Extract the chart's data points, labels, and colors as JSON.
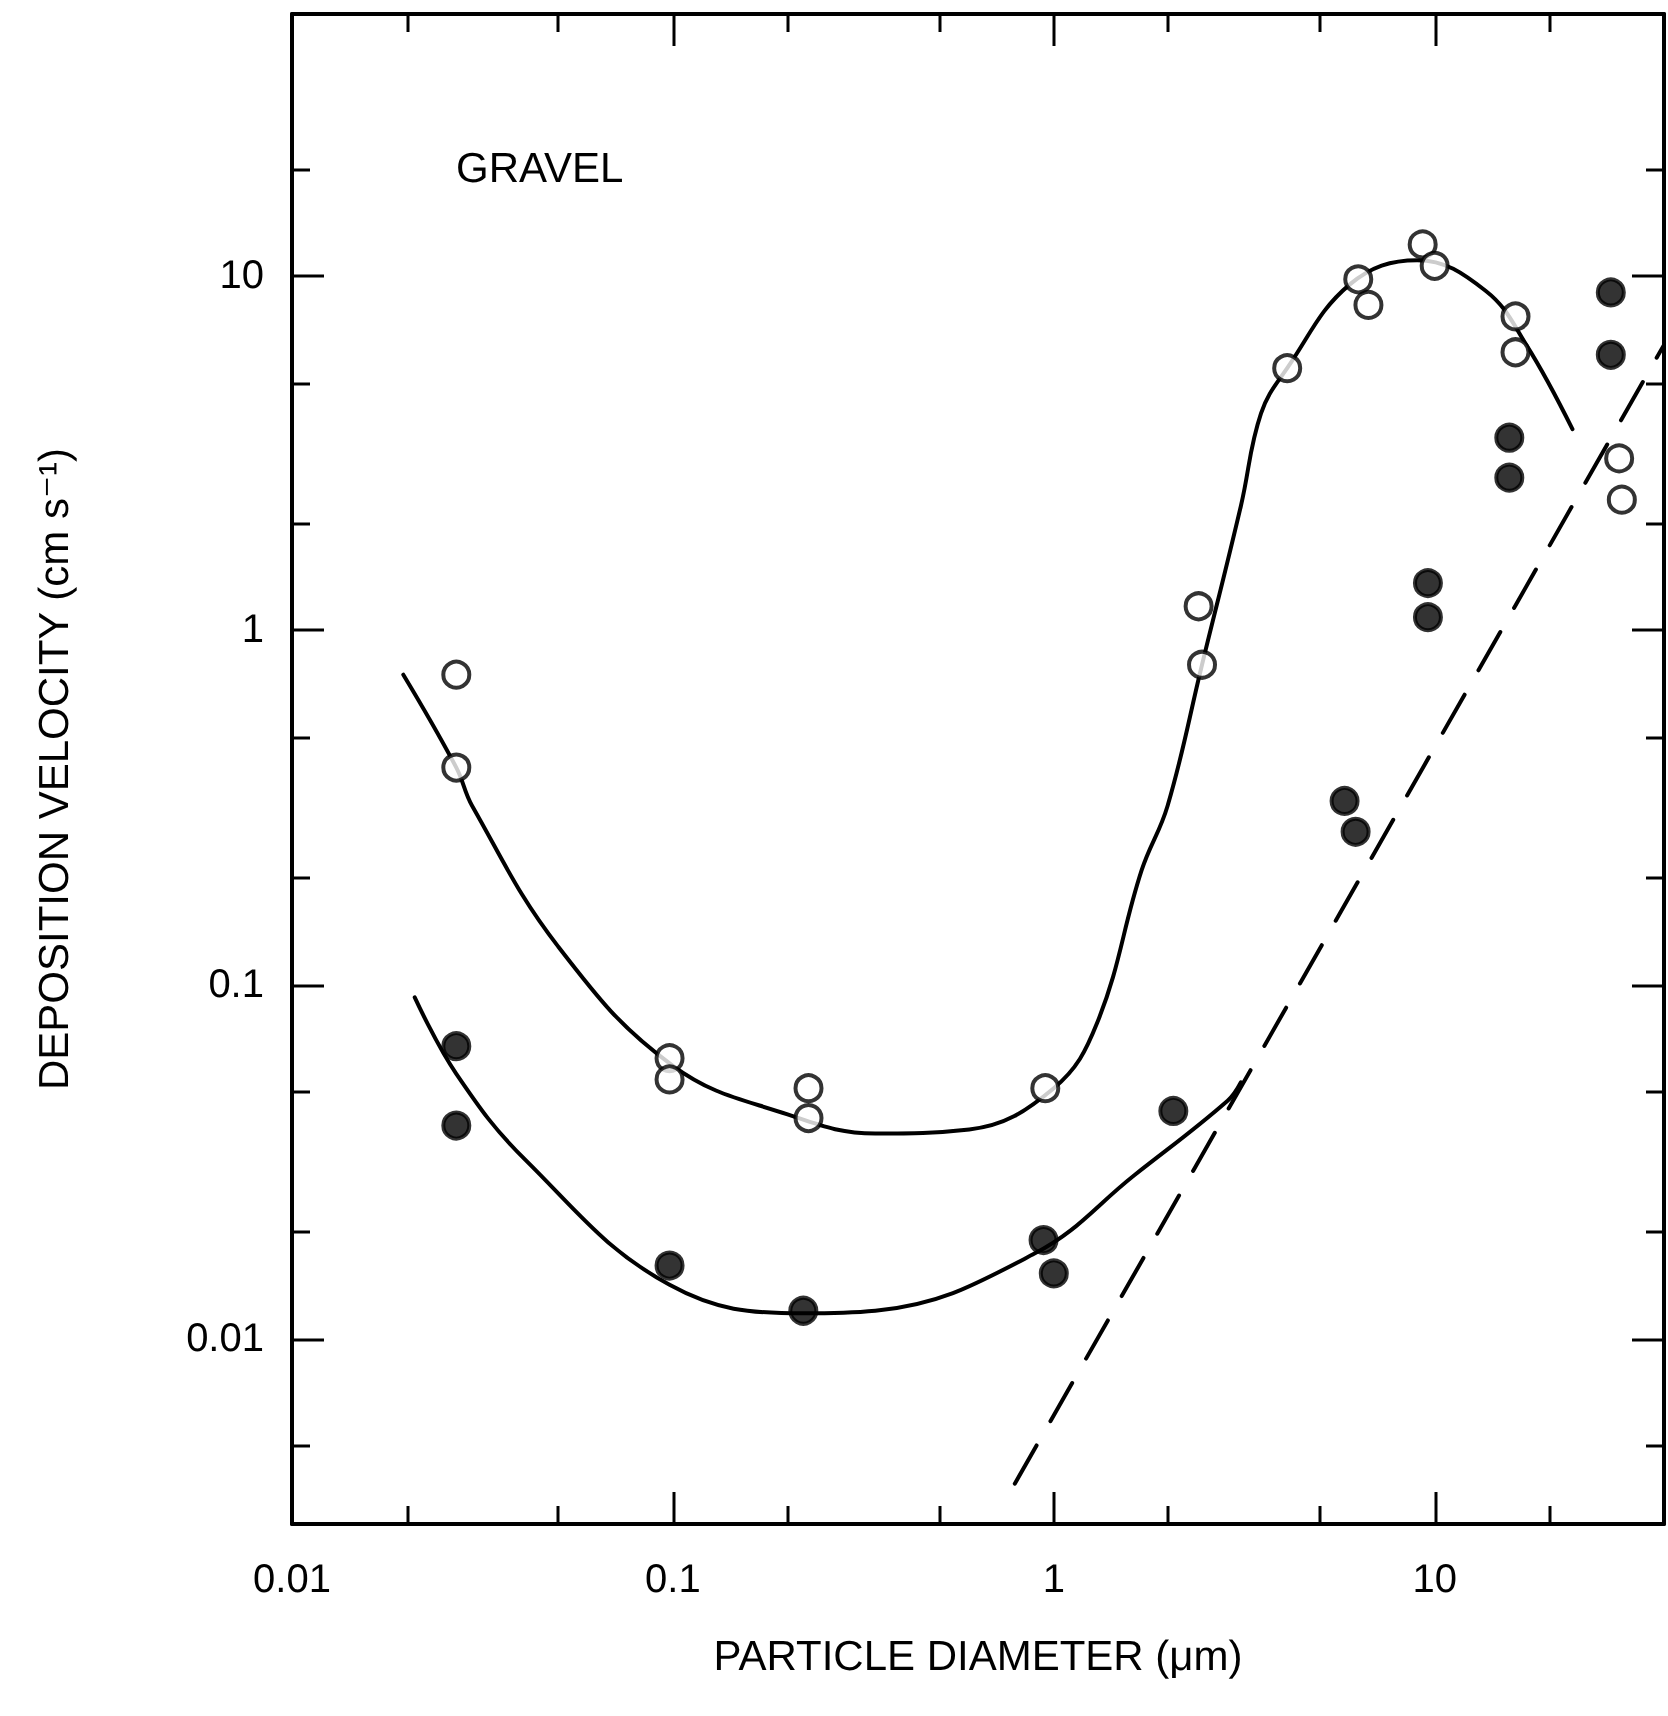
{
  "chart_data": {
    "type": "scatter",
    "xlabel": "PARTICLE DIAMETER (μm)",
    "ylabel": "DEPOSITION VELOCITY (cm s⁻¹)",
    "annotations": [
      "GRAVEL"
    ],
    "log": "xy",
    "grid": false,
    "marker": "circle",
    "xlim": [
      0.01,
      40
    ],
    "ylim": [
      0.003,
      55
    ],
    "xticks": [
      0.01,
      {
        "value": 0.02,
        "label": null
      },
      {
        "value": 0.05,
        "label": null
      },
      0.1,
      {
        "value": 0.2,
        "label": null
      },
      {
        "value": 0.5,
        "label": null
      },
      1,
      {
        "value": 2,
        "label": null
      },
      {
        "value": 5,
        "label": null
      },
      10,
      {
        "value": 20,
        "label": null
      }
    ],
    "yticks": [
      {
        "value": 0.005,
        "label": null
      },
      0.01,
      {
        "value": 0.02,
        "label": null
      },
      {
        "value": 0.05,
        "label": null
      },
      0.1,
      {
        "value": 0.2,
        "label": null
      },
      {
        "value": 0.5,
        "label": null
      },
      1,
      {
        "value": 2,
        "label": null
      },
      {
        "value": 5,
        "label": null
      },
      10,
      {
        "value": 20,
        "label": null
      }
    ],
    "series": [
      {
        "type": "line",
        "marker": "none",
        "line_style": "solid",
        "color": "#000000",
        "x": [
          0.0196,
          0.027,
          0.0297,
          0.05,
          0.1,
          0.2,
          0.34,
          0.6,
          1.0,
          1.3,
          1.7,
          1.99,
          2.45,
          3.1,
          3.5,
          4.1,
          6.0,
          9.0,
          13.6,
          17.4,
          23
        ],
        "values": [
          0.75,
          0.41,
          0.32,
          0.128,
          0.059,
          0.043,
          0.038,
          0.039,
          0.051,
          0.078,
          0.21,
          0.32,
          0.8,
          2.25,
          4.1,
          5.5,
          9.5,
          11.1,
          9.1,
          6.4,
          3.7
        ]
      },
      {
        "type": "line",
        "marker": "none",
        "line_style": "solid",
        "color": "#000000",
        "x": [
          0.021,
          0.027,
          0.041,
          0.098,
          0.22,
          0.34,
          0.89,
          1.63,
          2.86,
          3.1
        ],
        "values": [
          0.092,
          0.056,
          0.032,
          0.0142,
          0.0118,
          0.012,
          0.0174,
          0.029,
          0.047,
          0.053
        ]
      },
      {
        "type": "line",
        "marker": "none",
        "line_style": "dashed",
        "color": "#000000",
        "x": [
          0.79,
          40
        ],
        "values": [
          0.0039,
          6.4
        ]
      },
      {
        "color": "#ffffff",
        "x": [
          0.027,
          0.027,
          0.098,
          0.098,
          0.227,
          0.227,
          0.95,
          2.4,
          2.45,
          4.1,
          6.3,
          6.7,
          9.3,
          10,
          16.3,
          16.3,
          30.5,
          31
        ],
        "values": [
          0.75,
          0.41,
          0.062,
          0.054,
          0.051,
          0.042,
          0.051,
          1.17,
          0.8,
          5.5,
          9.8,
          8.3,
          12.3,
          10.7,
          7.7,
          6.1,
          3.06,
          2.34
        ]
      },
      {
        "color": "#000000",
        "x": [
          0.027,
          0.027,
          0.098,
          0.22,
          0.94,
          1.0,
          2.06,
          5.8,
          6.2,
          9.6,
          9.6,
          15.7,
          15.7,
          29,
          29
        ],
        "values": [
          0.067,
          0.04,
          0.0161,
          0.012,
          0.019,
          0.0153,
          0.044,
          0.33,
          0.27,
          1.36,
          1.09,
          3.5,
          2.7,
          9.0,
          6.0
        ]
      }
    ]
  }
}
